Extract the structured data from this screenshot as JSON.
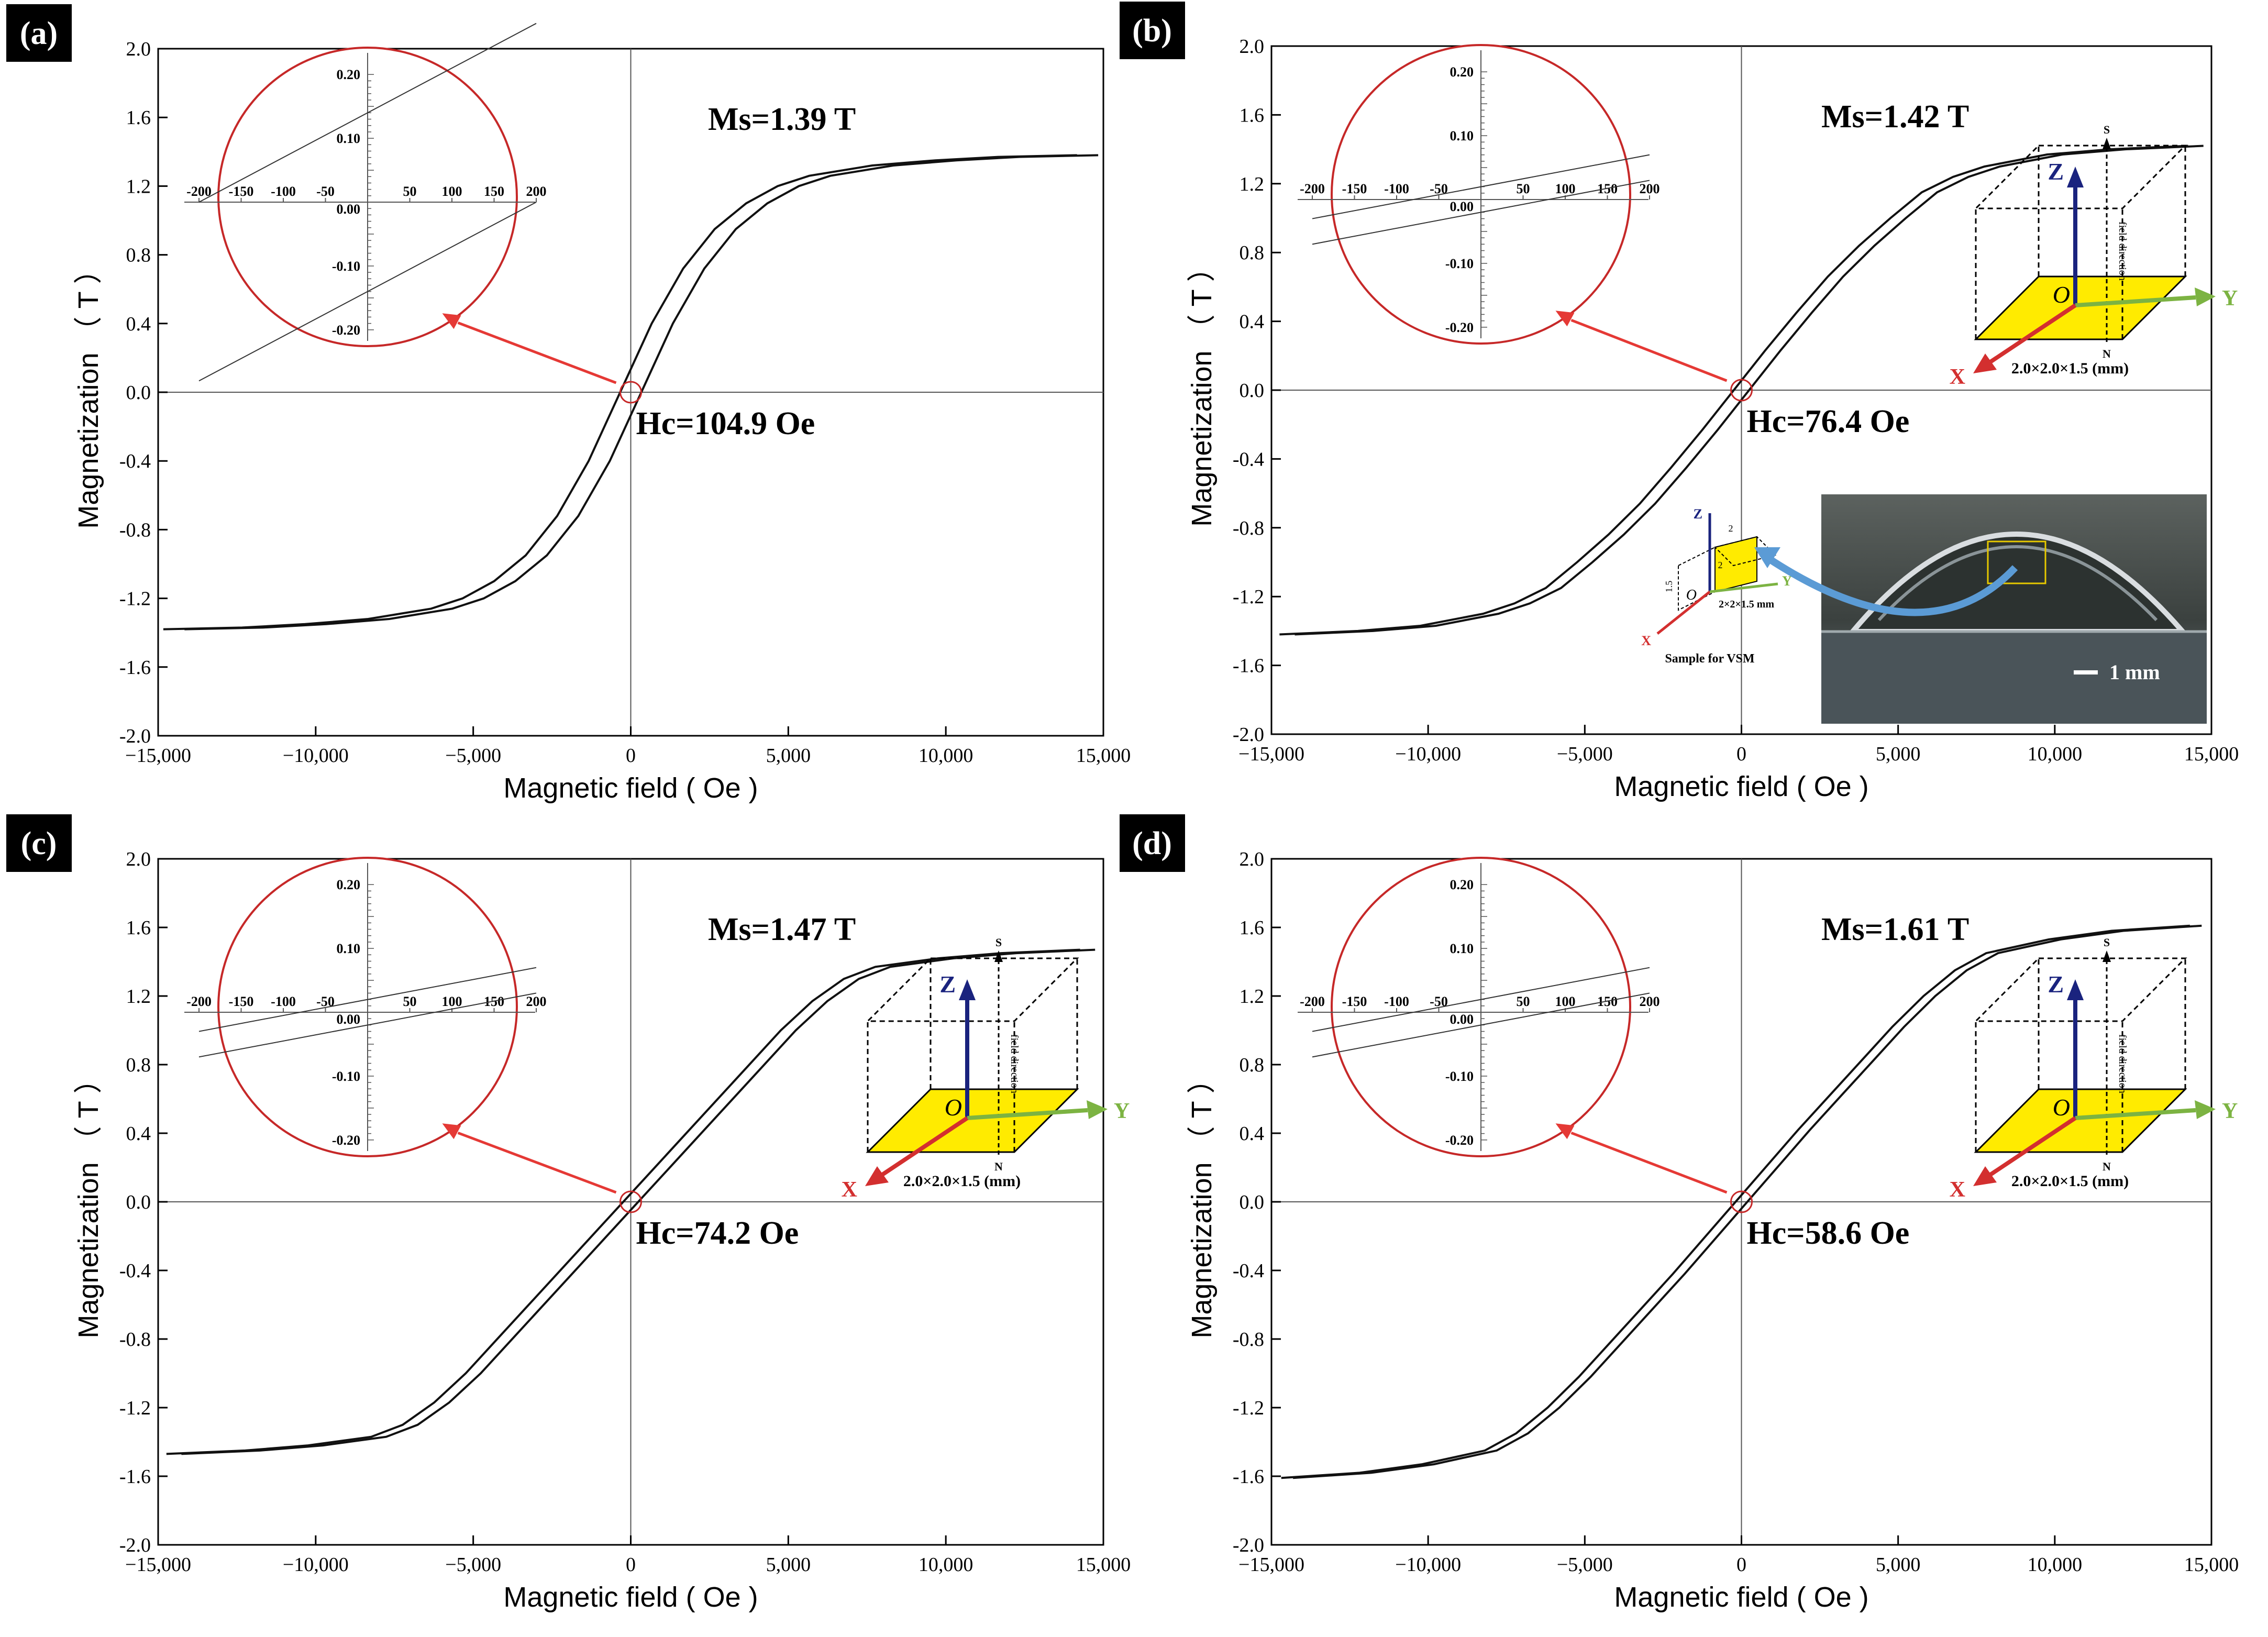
{
  "panels": [
    {
      "label": "(a)",
      "ms_label": "Ms=1.39 T",
      "hc_label": "Hc=104.9 Oe",
      "ms": 1.39,
      "hc": 104.9,
      "xlabel": "Magnetic field ( Oe )",
      "ylabel": "Magnetization （ T ）",
      "show_cube": false,
      "show_photo": false,
      "inset": {
        "xticks": [
          -200,
          -150,
          -100,
          -50,
          50,
          100,
          150,
          200
        ],
        "yticks": [
          "0.20",
          "0.10",
          "0.00",
          "-0.10",
          "-0.20"
        ],
        "branches": [
          [
            [
              -200,
              0.0
            ],
            [
              200,
              0.28
            ]
          ],
          [
            [
              -200,
              -0.28
            ],
            [
              200,
              0.0
            ]
          ]
        ]
      }
    },
    {
      "label": "(b)",
      "ms_label": "Ms=1.42 T",
      "hc_label": "Hc=76.4 Oe",
      "ms": 1.42,
      "hc": 76.4,
      "xlabel": "Magnetic field ( Oe )",
      "ylabel": "Magnetization （ T ）",
      "show_cube": true,
      "show_photo": true,
      "inset": {
        "xticks": [
          -200,
          -150,
          -100,
          -50,
          50,
          100,
          150,
          200
        ],
        "yticks": [
          "0.20",
          "0.10",
          "0.00",
          "-0.10",
          "-0.20"
        ],
        "branches": [
          [
            [
              -200,
              -0.03
            ],
            [
              200,
              0.07
            ]
          ],
          [
            [
              -200,
              -0.07
            ],
            [
              200,
              0.03
            ]
          ]
        ]
      }
    },
    {
      "label": "(c)",
      "ms_label": "Ms=1.47 T",
      "hc_label": "Hc=74.2 Oe",
      "ms": 1.47,
      "hc": 74.2,
      "xlabel": "Magnetic field ( Oe )",
      "ylabel": "Magnetization （ T ）",
      "show_cube": true,
      "show_photo": false,
      "inset": {
        "xticks": [
          -200,
          -150,
          -100,
          -50,
          50,
          100,
          150,
          200
        ],
        "yticks": [
          "0.20",
          "0.10",
          "0.00",
          "-0.10",
          "-0.20"
        ],
        "branches": [
          [
            [
              -200,
              -0.03
            ],
            [
              200,
              0.07
            ]
          ],
          [
            [
              -200,
              -0.07
            ],
            [
              200,
              0.03
            ]
          ]
        ]
      }
    },
    {
      "label": "(d)",
      "ms_label": "Ms=1.61 T",
      "hc_label": "Hc=58.6 Oe",
      "ms": 1.61,
      "hc": 58.6,
      "xlabel": "Magnetic field ( Oe )",
      "ylabel": "Magnetization （ T ）",
      "show_cube": true,
      "show_photo": false,
      "inset": {
        "xticks": [
          -200,
          -150,
          -100,
          -50,
          50,
          100,
          150,
          200
        ],
        "yticks": [
          "0.20",
          "0.10",
          "0.00",
          "-0.10",
          "-0.20"
        ],
        "branches": [
          [
            [
              -200,
              -0.03
            ],
            [
              200,
              0.07
            ]
          ],
          [
            [
              -200,
              -0.07
            ],
            [
              200,
              0.03
            ]
          ]
        ]
      }
    }
  ],
  "cube": {
    "axis_x": "X",
    "axis_y": "Y",
    "axis_z": "Z",
    "origin": "O",
    "field_dir": "field direction",
    "s_label": "S",
    "n_label": "N",
    "dims": "2.0×2.0×1.5 (mm)"
  },
  "photo": {
    "scale_label": "1 mm",
    "sample_caption": "Sample for VSM",
    "small_dims": "2×2×1.5 mm",
    "small_x": "X",
    "small_y": "Y",
    "small_z": "Z",
    "small_o": "O",
    "small_2a": "2",
    "small_2b": "2",
    "small_15": "1.5"
  },
  "colors": {
    "curve": "#111111",
    "inset_circle": "#c62828",
    "arrow": "#e53935",
    "x_axis": "#d32f2f",
    "y_axis": "#7cb342",
    "z_axis": "#1a237e",
    "cube_face": "#ffeb00"
  },
  "chart_data": [
    {
      "type": "line",
      "title": "",
      "xlabel": "Magnetic field ( Oe )",
      "ylabel": "Magnetization （ T ）",
      "xlim": [
        -15000,
        15000
      ],
      "ylim": [
        -2.0,
        2.0
      ],
      "xticks": [
        -15000,
        -10000,
        -5000,
        0,
        5000,
        10000,
        15000
      ],
      "xtick_labels": [
        "−15,000",
        "−10,000",
        "−5,000",
        "0",
        "5,000",
        "10,000",
        "15,000"
      ],
      "yticks": [
        -2.0,
        -1.6,
        -1.2,
        -0.8,
        -0.4,
        0.0,
        0.4,
        0.8,
        1.2,
        1.6,
        2.0
      ],
      "ytick_labels": [
        "-2.0",
        "-1.6",
        "-1.2",
        "-0.8",
        "-0.4",
        "0.0",
        "0.4",
        "0.8",
        "1.2",
        "1.6",
        "2.0"
      ],
      "series": [
        {
          "x": [
            -14500,
            -12000,
            -10000,
            -8000,
            -6000,
            -5000,
            -4000,
            -3000,
            -2000,
            -1000,
            0,
            1000,
            2000,
            3000,
            4000,
            5000,
            6000,
            8000,
            10000,
            12000,
            14500
          ],
          "y": [
            -1.38,
            -1.37,
            -1.35,
            -1.32,
            -1.26,
            -1.2,
            -1.1,
            -0.95,
            -0.72,
            -0.4,
            0.0,
            0.4,
            0.72,
            0.95,
            1.1,
            1.2,
            1.26,
            1.32,
            1.35,
            1.37,
            1.38
          ]
        }
      ]
    },
    {
      "type": "line",
      "title": "",
      "xlabel": "Magnetic field ( Oe )",
      "ylabel": "Magnetization （ T ）",
      "xlim": [
        -15000,
        15000
      ],
      "ylim": [
        -2.0,
        2.0
      ],
      "xticks": [
        -15000,
        -10000,
        -5000,
        0,
        5000,
        10000,
        15000
      ],
      "xtick_labels": [
        "−15,000",
        "−10,000",
        "−5,000",
        "0",
        "5,000",
        "10,000",
        "15,000"
      ],
      "yticks": [
        -2.0,
        -1.6,
        -1.2,
        -0.8,
        -0.4,
        0.0,
        0.4,
        0.8,
        1.2,
        1.6,
        2.0
      ],
      "ytick_labels": [
        "-2.0",
        "-1.6",
        "-1.2",
        "-0.8",
        "-0.4",
        "0.0",
        "0.4",
        "0.8",
        "1.2",
        "1.6",
        "2.0"
      ],
      "series": [
        {
          "x": [
            -14500,
            -12000,
            -10000,
            -8000,
            -7000,
            -6000,
            -5000,
            -4000,
            -3000,
            -2000,
            -1000,
            0,
            1000,
            2000,
            3000,
            4000,
            5000,
            6000,
            7000,
            8000,
            10000,
            12000,
            14500
          ],
          "y": [
            -1.42,
            -1.4,
            -1.37,
            -1.3,
            -1.24,
            -1.15,
            -1.0,
            -0.84,
            -0.66,
            -0.45,
            -0.23,
            0.0,
            0.23,
            0.45,
            0.66,
            0.84,
            1.0,
            1.15,
            1.24,
            1.3,
            1.37,
            1.4,
            1.42
          ]
        }
      ]
    },
    {
      "type": "line",
      "title": "",
      "xlabel": "Magnetic field ( Oe )",
      "ylabel": "Magnetization （ T ）",
      "xlim": [
        -15000,
        15000
      ],
      "ylim": [
        -2.0,
        2.0
      ],
      "xticks": [
        -15000,
        -10000,
        -5000,
        0,
        5000,
        10000,
        15000
      ],
      "xtick_labels": [
        "−15,000",
        "−10,000",
        "−5,000",
        "0",
        "5,000",
        "10,000",
        "15,000"
      ],
      "yticks": [
        -2.0,
        -1.6,
        -1.2,
        -0.8,
        -0.4,
        0.0,
        0.4,
        0.8,
        1.2,
        1.6,
        2.0
      ],
      "ytick_labels": [
        "-2.0",
        "-1.6",
        "-1.2",
        "-0.8",
        "-0.4",
        "0.0",
        "0.4",
        "0.8",
        "1.2",
        "1.6",
        "2.0"
      ],
      "series": [
        {
          "x": [
            -14500,
            -12000,
            -10000,
            -8000,
            -7000,
            -6000,
            -5000,
            -4000,
            -3000,
            -2000,
            -1000,
            0,
            1000,
            2000,
            3000,
            4000,
            5000,
            6000,
            7000,
            8000,
            10000,
            12000,
            14500
          ],
          "y": [
            -1.47,
            -1.45,
            -1.42,
            -1.37,
            -1.3,
            -1.17,
            -1.0,
            -0.8,
            -0.6,
            -0.4,
            -0.2,
            0.0,
            0.2,
            0.4,
            0.6,
            0.8,
            1.0,
            1.17,
            1.3,
            1.37,
            1.42,
            1.45,
            1.47
          ]
        }
      ]
    },
    {
      "type": "line",
      "title": "",
      "xlabel": "Magnetic field ( Oe )",
      "ylabel": "Magnetization （ T ）",
      "xlim": [
        -15000,
        15000
      ],
      "ylim": [
        -2.0,
        2.0
      ],
      "xticks": [
        -15000,
        -10000,
        -5000,
        0,
        5000,
        10000,
        15000
      ],
      "xtick_labels": [
        "−15,000",
        "−10,000",
        "−5,000",
        "0",
        "5,000",
        "10,000",
        "15,000"
      ],
      "yticks": [
        -2.0,
        -1.6,
        -1.2,
        -0.8,
        -0.4,
        0.0,
        0.4,
        0.8,
        1.2,
        1.6,
        2.0
      ],
      "ytick_labels": [
        "-2.0",
        "-1.6",
        "-1.2",
        "-0.8",
        "-0.4",
        "0.0",
        "0.4",
        "0.8",
        "1.2",
        "1.6",
        "2.0"
      ],
      "series": [
        {
          "x": [
            -14500,
            -12000,
            -10000,
            -8000,
            -7000,
            -6000,
            -5000,
            -4000,
            -3000,
            -2000,
            -1000,
            0,
            1000,
            2000,
            3000,
            4000,
            5000,
            6000,
            7000,
            8000,
            10000,
            12000,
            14500
          ],
          "y": [
            -1.61,
            -1.58,
            -1.53,
            -1.45,
            -1.35,
            -1.2,
            -1.02,
            -0.82,
            -0.62,
            -0.42,
            -0.21,
            0.0,
            0.21,
            0.42,
            0.62,
            0.82,
            1.02,
            1.2,
            1.35,
            1.45,
            1.53,
            1.58,
            1.61
          ]
        }
      ]
    }
  ]
}
